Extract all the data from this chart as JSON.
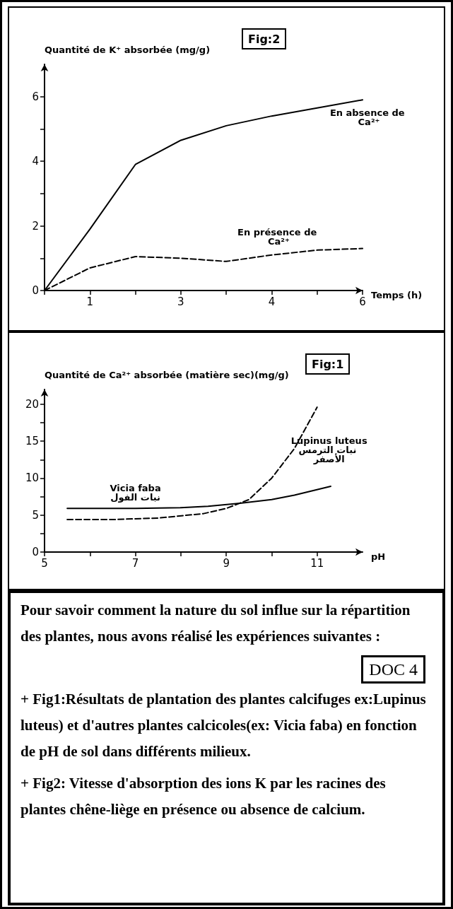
{
  "chart_data": [
    {
      "type": "line",
      "title": "Fig:2",
      "xlabel": "Temps (h)",
      "ylabel": "Quantité de K⁺ absorbée (mg/g)",
      "marker": "none",
      "categories": [
        null,
        "1",
        null,
        "3",
        null,
        "4",
        null,
        "6"
      ],
      "ylim": [
        0,
        7
      ],
      "yticks": [
        0,
        {
          "value": 1,
          "label": null
        },
        2,
        {
          "value": 3,
          "label": null
        },
        4,
        {
          "value": 5,
          "label": null
        },
        6
      ],
      "series": [
        {
          "name": "En absence de Ca²⁺",
          "color": "#000000",
          "line_style": "solid",
          "values": [
            0,
            1.9,
            3.9,
            4.65,
            5.1,
            5.4,
            5.65,
            5.9
          ]
        },
        {
          "name": "En présence de Ca²⁺",
          "color": "#000000",
          "line_style": "dashed",
          "values": [
            0,
            0.7,
            1.05,
            1.0,
            0.9,
            1.1,
            1.25,
            1.3
          ]
        }
      ]
    },
    {
      "type": "line",
      "title": "Fig:1",
      "xlabel": "pH",
      "ylabel": "Quantité de Ca²⁺ absorbée (matière sec)(mg/g)",
      "marker": "none",
      "xlim": [
        5,
        12
      ],
      "xticks": [
        5,
        {
          "value": 6,
          "label": null
        },
        7,
        {
          "value": 8,
          "label": null
        },
        9,
        {
          "value": 10,
          "label": null
        },
        11
      ],
      "ylim": [
        0,
        22
      ],
      "yticks": [
        0,
        {
          "value": 2.5,
          "label": null
        },
        5,
        {
          "value": 7.5,
          "label": null
        },
        10,
        {
          "value": 12.5,
          "label": null
        },
        15,
        {
          "value": 17.5,
          "label": null
        },
        20
      ],
      "series": [
        {
          "name": "Lupinus luteus\nنبات الترمس الأصفر",
          "color": "#000000",
          "line_style": "dashed",
          "x": [
            5.5,
            6.5,
            7.5,
            8.5,
            9,
            9.5,
            10,
            10.5,
            11
          ],
          "values": [
            4.4,
            4.4,
            4.6,
            5.2,
            5.9,
            7.1,
            10,
            14,
            19.6
          ]
        },
        {
          "name": "Vicia faba\nنبات الفول",
          "color": "#000000",
          "line_style": "solid",
          "x": [
            5.5,
            7,
            8,
            8.6,
            9.3,
            10,
            10.5,
            11.3
          ],
          "values": [
            5.9,
            5.9,
            6.0,
            6.2,
            6.6,
            7.1,
            7.7,
            8.9
          ]
        }
      ]
    },
    {
      "type": "other",
      "title": "DOC 4",
      "annotations": [
        "Pour savoir comment la nature du sol influe sur la répartition des plantes, nous avons réalisé les expériences suivantes :",
        "+ Fig1:Résultats de plantation des plantes calcifuges ex:Lupinus luteus) et d'autres plantes calcicoles(ex: Vicia faba) en fonction de pH de sol dans différents milieux.",
        "+ Fig2: Vitesse d'absorption des ions K par les racines des plantes chêne-liège en présence ou absence de calcium."
      ]
    }
  ]
}
